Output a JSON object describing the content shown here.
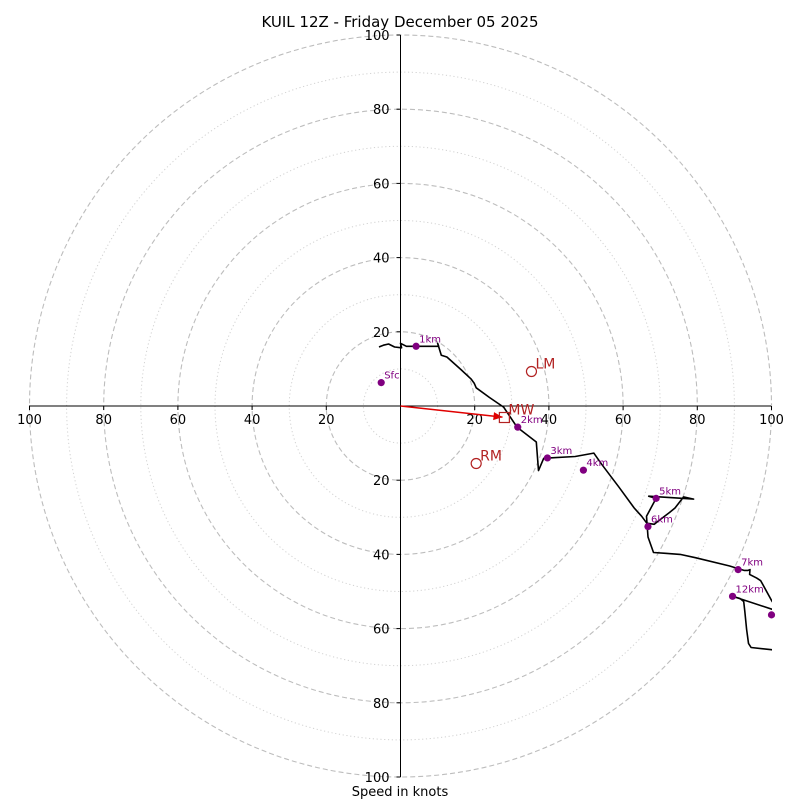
{
  "chart_data": {
    "type": "hodograph",
    "title": "KUIL 12Z - Friday December 05 2025",
    "xlabel": "Speed in knots",
    "units": "knots",
    "max_speed": 100,
    "major_rings": [
      20,
      40,
      60,
      80,
      100
    ],
    "minor_rings": [
      10,
      30,
      50,
      70,
      90
    ],
    "x_ticks": [
      {
        "value": -100,
        "label": "100"
      },
      {
        "value": -80,
        "label": "80"
      },
      {
        "value": -60,
        "label": "60"
      },
      {
        "value": -40,
        "label": "40"
      },
      {
        "value": -20,
        "label": "20"
      },
      {
        "value": 20,
        "label": "20"
      },
      {
        "value": 40,
        "label": "40"
      },
      {
        "value": 60,
        "label": "60"
      },
      {
        "value": 80,
        "label": "80"
      },
      {
        "value": 100,
        "label": "100"
      }
    ],
    "y_ticks": [
      {
        "value": 100,
        "label": "100"
      },
      {
        "value": 80,
        "label": "80"
      },
      {
        "value": 60,
        "label": "60"
      },
      {
        "value": 40,
        "label": "40"
      },
      {
        "value": 20,
        "label": "20"
      },
      {
        "value": -20,
        "label": "20"
      },
      {
        "value": -40,
        "label": "40"
      },
      {
        "value": -60,
        "label": "60"
      },
      {
        "value": -80,
        "label": "80"
      },
      {
        "value": -100,
        "label": "100"
      }
    ],
    "trace": [
      [
        -5.8,
        15.9
      ],
      [
        -4.6,
        16.4
      ],
      [
        -3.2,
        16.7
      ],
      [
        -1.6,
        15.9
      ],
      [
        0.3,
        15.7
      ],
      [
        0.0,
        16.9
      ],
      [
        1.6,
        16.1
      ],
      [
        5.2,
        16.1
      ],
      [
        10.3,
        16.1
      ],
      [
        10.0,
        16.9
      ],
      [
        11.0,
        13.7
      ],
      [
        12.5,
        13.2
      ],
      [
        16.3,
        9.8
      ],
      [
        19.0,
        7.3
      ],
      [
        19.9,
        6.1
      ],
      [
        20.4,
        4.9
      ],
      [
        24.0,
        2.3
      ],
      [
        27.8,
        -0.3
      ],
      [
        31.4,
        -5.7
      ],
      [
        36.6,
        -9.7
      ],
      [
        37.2,
        -17.4
      ],
      [
        38.6,
        -14.1
      ],
      [
        40.1,
        -14.0
      ],
      [
        47.1,
        -13.6
      ],
      [
        52.1,
        -12.7
      ],
      [
        54.2,
        -15.7
      ],
      [
        58.9,
        -21.9
      ],
      [
        63.0,
        -27.5
      ],
      [
        65.0,
        -29.7
      ],
      [
        66.4,
        -31.6
      ],
      [
        68.4,
        -31.9
      ],
      [
        69.5,
        -31.0
      ],
      [
        72.5,
        -28.7
      ],
      [
        74.0,
        -27.5
      ],
      [
        76.3,
        -24.5
      ],
      [
        79.0,
        -25.1
      ],
      [
        66.9,
        -24.3
      ],
      [
        68.9,
        -24.9
      ],
      [
        66.3,
        -29.7
      ],
      [
        66.7,
        -35.3
      ],
      [
        68.2,
        -39.5
      ],
      [
        71.4,
        -39.7
      ],
      [
        75.4,
        -40.0
      ],
      [
        79.5,
        -40.9
      ],
      [
        88.6,
        -43.1
      ],
      [
        92.6,
        -44.3
      ],
      [
        93.7,
        -44.3
      ],
      [
        94.2,
        -44.1
      ],
      [
        94.1,
        -45.4
      ],
      [
        96.0,
        -46.4
      ],
      [
        97.1,
        -47.1
      ],
      [
        100.0,
        -52.4
      ],
      [
        102.0,
        -55.4
      ],
      [
        89.5,
        -51.3
      ],
      [
        91.5,
        -51.9
      ],
      [
        92.5,
        -52.7
      ],
      [
        92.8,
        -55.3
      ],
      [
        93.3,
        -60.2
      ],
      [
        93.8,
        -64.0
      ],
      [
        94.5,
        -65.1
      ],
      [
        100.0,
        -65.7
      ],
      [
        102.0,
        -66.0
      ]
    ],
    "height_markers": [
      {
        "label": "Sfc",
        "u": -5.2,
        "v": 6.3
      },
      {
        "label": "1km",
        "u": 4.2,
        "v": 16.1
      },
      {
        "label": "2km",
        "u": 31.6,
        "v": -5.7
      },
      {
        "label": "3km",
        "u": 39.6,
        "v": -14.0
      },
      {
        "label": "4km",
        "u": 49.3,
        "v": -17.3
      },
      {
        "label": "5km",
        "u": 68.9,
        "v": -24.9
      },
      {
        "label": "6km",
        "u": 66.7,
        "v": -32.5
      },
      {
        "label": "7km",
        "u": 91.0,
        "v": -44.1
      },
      {
        "label": "12km",
        "u": 89.5,
        "v": -51.3
      },
      {
        "label": "",
        "u": 100.0,
        "v": -56.3
      }
    ],
    "storm_motion": [
      {
        "label": "LM",
        "u": 35.3,
        "v": 9.3,
        "marker": "circle"
      },
      {
        "label": "RM",
        "u": 20.4,
        "v": -15.5,
        "marker": "circle"
      },
      {
        "label": "MW",
        "u": 28.0,
        "v": -3.1,
        "marker": "square"
      }
    ],
    "motion_vector": {
      "from": [
        0,
        0
      ],
      "to": [
        27.5,
        -3.0
      ]
    },
    "colors": {
      "trace": "#000000",
      "marker": "#800080",
      "storm": "#b22222",
      "vector": "#e00000",
      "major_grid": "#bdbdbd",
      "minor_grid": "#d2d2d2"
    }
  }
}
